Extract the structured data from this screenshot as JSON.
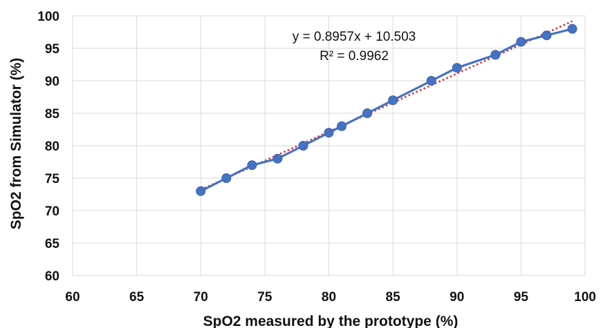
{
  "chart_data": {
    "type": "scatter",
    "xlabel": "SpO2 measured by the prototype (%)",
    "ylabel": "SpO2 from Simulator (%)",
    "xlim": [
      60,
      100
    ],
    "ylim": [
      60,
      100
    ],
    "x_ticks": [
      "60",
      "65",
      "70",
      "75",
      "80",
      "85",
      "90",
      "95",
      "100"
    ],
    "y_ticks": [
      "60",
      "65",
      "70",
      "75",
      "80",
      "85",
      "90",
      "95",
      "100"
    ],
    "grid": true,
    "series": [
      {
        "x": [
          70,
          72,
          74,
          76,
          78,
          80,
          81,
          83,
          85,
          88,
          90,
          93,
          95,
          97,
          99
        ],
        "y": [
          73,
          75,
          77,
          78,
          80,
          82,
          83,
          85,
          87,
          90,
          92,
          94,
          96,
          97,
          98
        ],
        "color": "#4472c4",
        "markers": true,
        "line": true
      }
    ],
    "trendline": {
      "type": "linear",
      "slope": 0.8957,
      "intercept": 10.503,
      "x_range": [
        70,
        99
      ],
      "color": "#d92b2b",
      "style": "dotted"
    },
    "annotations": {
      "equation": "y = 0.8957x + 10.503",
      "r_squared": "R² = 0.9962"
    }
  }
}
